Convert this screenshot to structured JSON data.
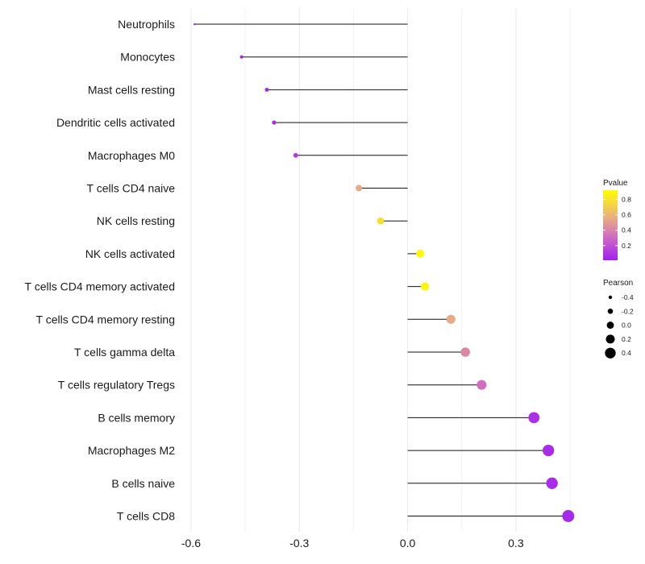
{
  "chart_data": {
    "type": "lollipop",
    "title": "",
    "xlabel": "",
    "ylabel": "",
    "xlim": [
      -0.62,
      0.47
    ],
    "x_ticks": [
      -0.6,
      -0.3,
      0.0,
      0.3
    ],
    "x_tick_labels": [
      "-0.6",
      "-0.3",
      "0.0",
      "0.3"
    ],
    "grid": true,
    "categories": [
      "Neutrophils",
      "Monocytes",
      "Mast cells resting",
      "Dendritic cells activated",
      "Macrophages M0",
      "T cells CD4 naive",
      "NK cells resting",
      "NK cells activated",
      "T cells CD4 memory activated",
      "T cells CD4 memory resting",
      "T cells gamma delta",
      "T cells regulatory  Tregs",
      "B cells memory",
      "Macrophages M2",
      "B cells naive",
      "T cells CD8"
    ],
    "values": [
      -0.59,
      -0.46,
      -0.39,
      -0.37,
      -0.31,
      -0.135,
      -0.075,
      0.035,
      0.048,
      0.12,
      0.16,
      0.205,
      0.35,
      0.39,
      0.4,
      0.445
    ],
    "pvalues": [
      0.03,
      0.04,
      0.04,
      0.05,
      0.12,
      0.55,
      0.78,
      0.9,
      0.88,
      0.55,
      0.42,
      0.32,
      0.08,
      0.06,
      0.06,
      0.05
    ],
    "legend_color": {
      "title": "Pvalue",
      "ticks": [
        0.8,
        0.6,
        0.4,
        0.2
      ],
      "tick_labels": [
        "0.8",
        "0.6",
        "0.4",
        "0.2"
      ],
      "range": [
        0.01,
        0.92
      ],
      "colors": [
        "#a020f0",
        "#ffff00"
      ]
    },
    "legend_size": {
      "title": "Pearson",
      "values": [
        -0.4,
        -0.2,
        0.0,
        0.2,
        0.4
      ],
      "labels": [
        "-0.4",
        "-0.2",
        "0.0",
        "0.2",
        "0.4"
      ]
    },
    "legend_placement": "right"
  }
}
